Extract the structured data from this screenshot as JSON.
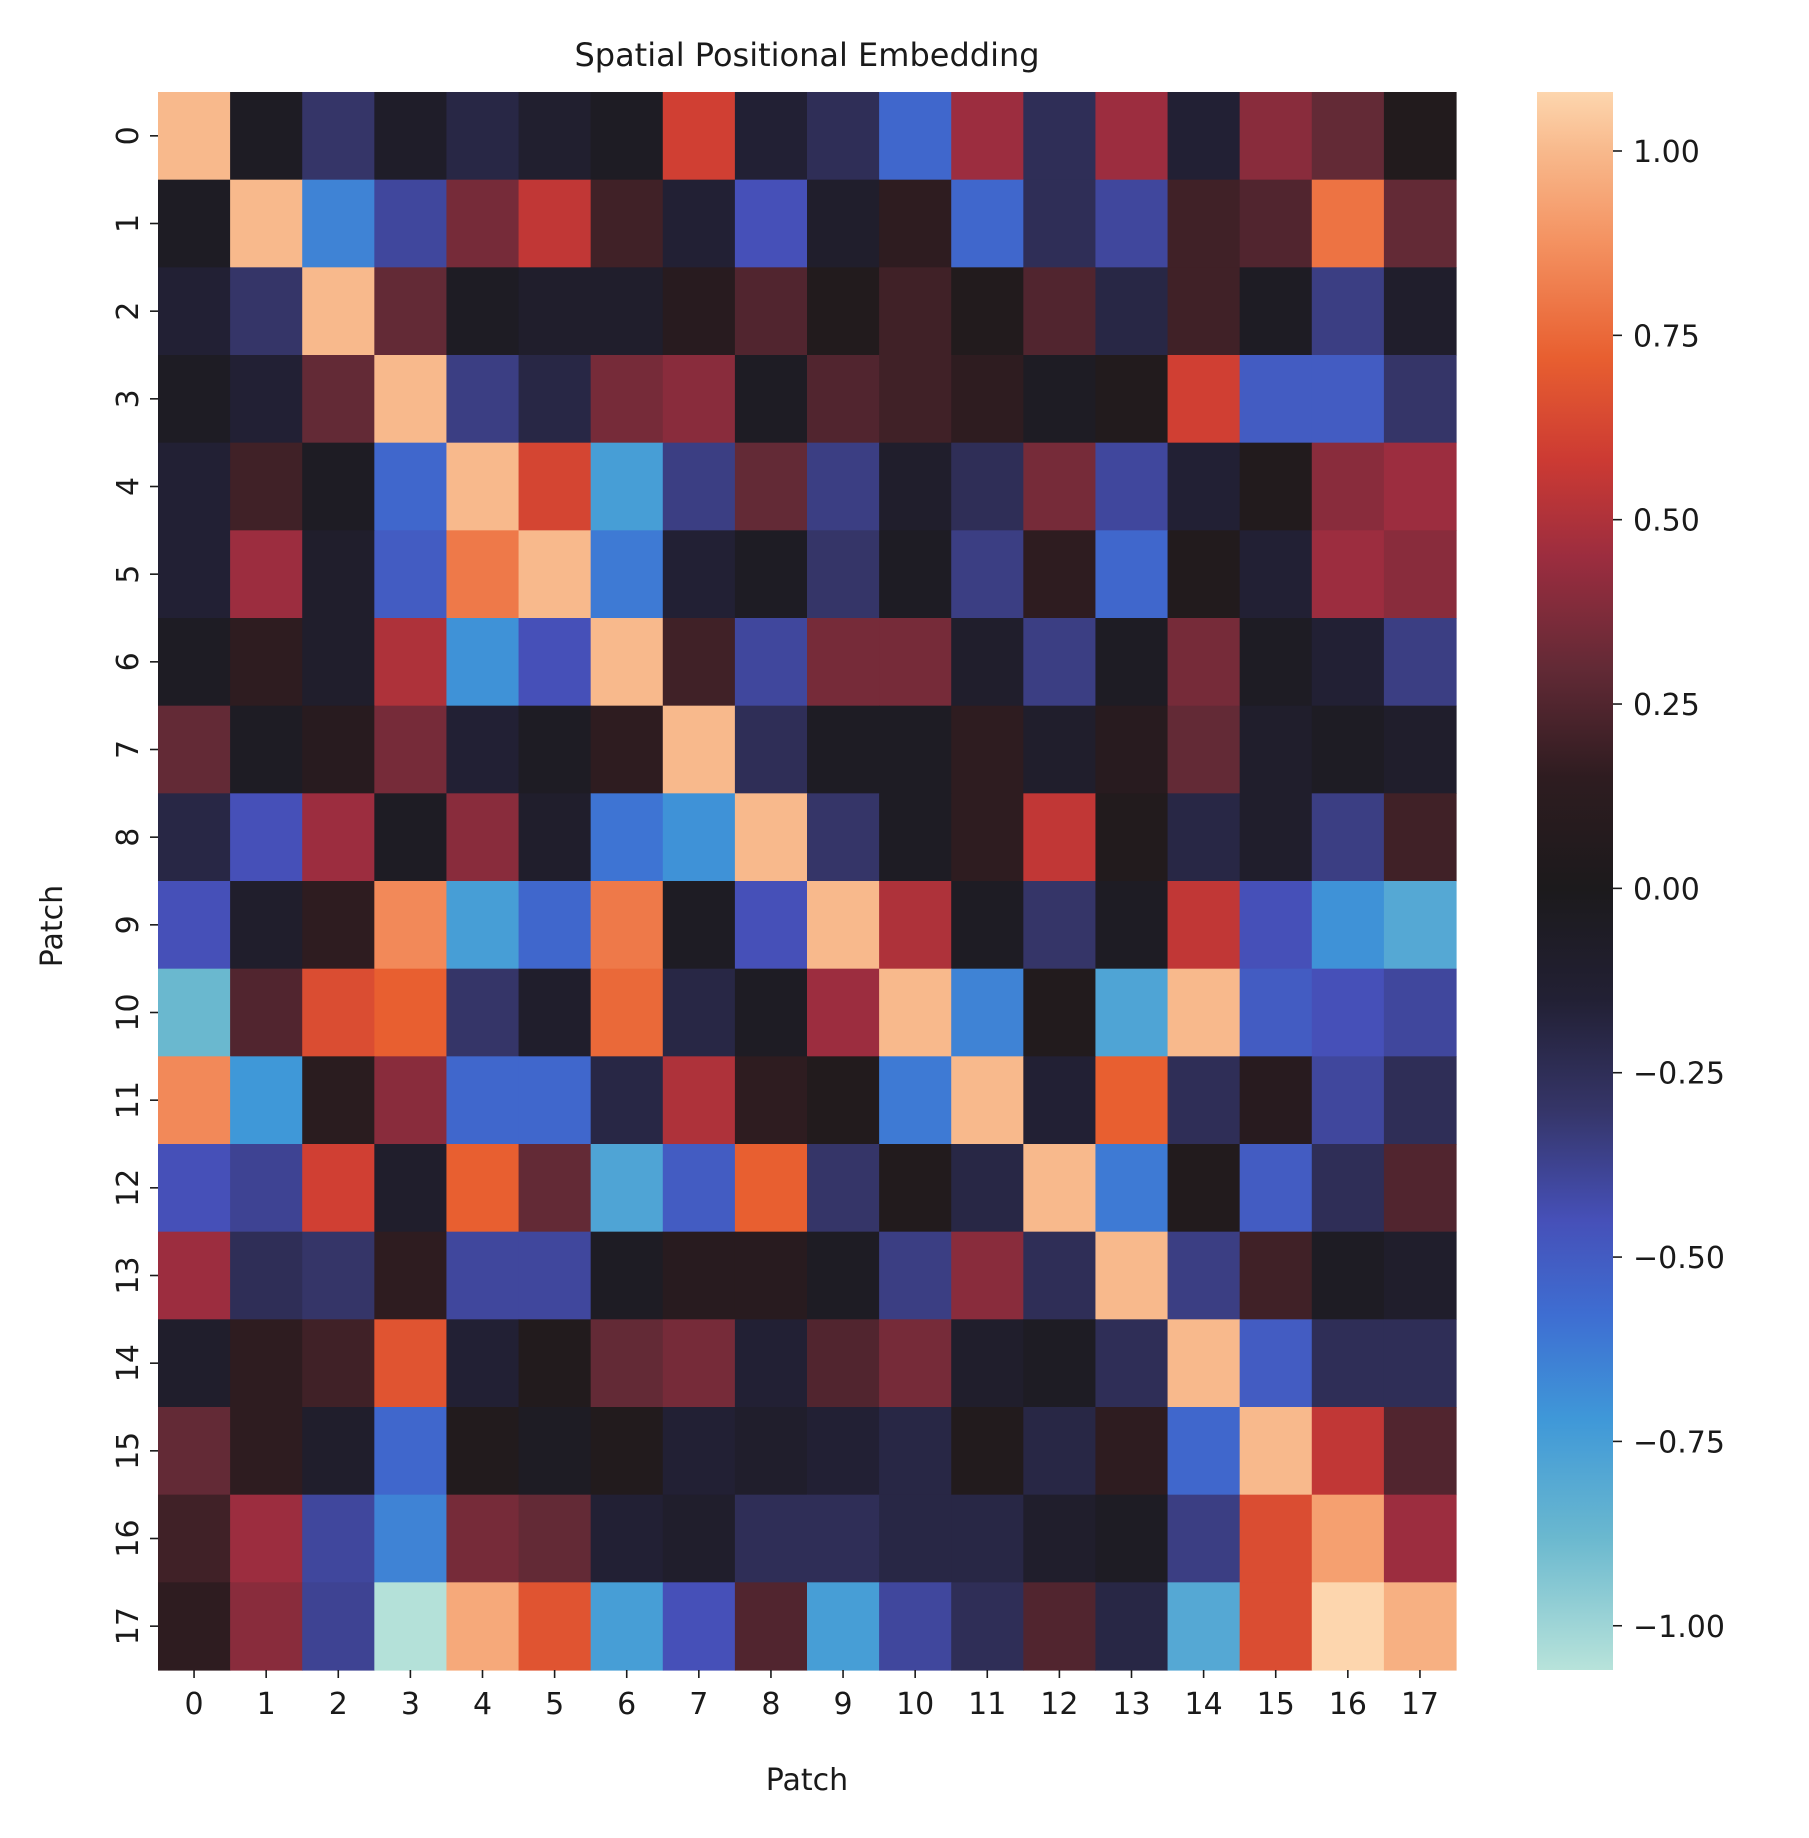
{
  "chart_data": {
    "type": "heatmap",
    "title": "Spatial Positional Embedding",
    "xlabel": "Patch",
    "ylabel": "Patch",
    "x_categories": [
      "0",
      "1",
      "2",
      "3",
      "4",
      "5",
      "6",
      "7",
      "8",
      "9",
      "10",
      "11",
      "12",
      "13",
      "14",
      "15",
      "16",
      "17"
    ],
    "y_categories": [
      "0",
      "1",
      "2",
      "3",
      "4",
      "5",
      "6",
      "7",
      "8",
      "9",
      "10",
      "11",
      "12",
      "13",
      "14",
      "15",
      "16",
      "17"
    ],
    "colorbar": {
      "vmin": -1.06,
      "vmax": 1.08,
      "ticks": [
        1.0,
        0.75,
        0.5,
        0.25,
        0.0,
        -0.25,
        -0.5,
        -0.75,
        -1.0
      ],
      "tick_labels": [
        "1.00",
        "0.75",
        "0.50",
        "0.25",
        "0.00",
        "−0.25",
        "−0.50",
        "−0.75",
        "−1.00"
      ]
    },
    "colormap": "icefire",
    "colormap_stops": [
      [
        -1.06,
        "#b8e3da"
      ],
      [
        -0.88,
        "#6ab8cf"
      ],
      [
        -0.72,
        "#3f98d8"
      ],
      [
        -0.58,
        "#3e6ed2"
      ],
      [
        -0.45,
        "#4650b8"
      ],
      [
        -0.3,
        "#353568"
      ],
      [
        -0.15,
        "#222034"
      ],
      [
        0.0,
        "#1c1a1c"
      ],
      [
        0.15,
        "#2e1c20"
      ],
      [
        0.3,
        "#632a36"
      ],
      [
        0.45,
        "#9c2d3f"
      ],
      [
        0.58,
        "#cc3a33"
      ],
      [
        0.72,
        "#e85f30"
      ],
      [
        0.88,
        "#f49362"
      ],
      [
        1.0,
        "#f8b98c"
      ],
      [
        1.08,
        "#fdd6ae"
      ]
    ],
    "values": [
      [
        1.0,
        -0.05,
        -0.3,
        -0.08,
        -0.2,
        -0.12,
        -0.05,
        0.6,
        -0.15,
        -0.25,
        -0.55,
        0.45,
        -0.25,
        0.45,
        -0.15,
        0.4,
        0.3,
        0.05
      ],
      [
        -0.05,
        1.0,
        -0.65,
        -0.4,
        0.35,
        0.55,
        0.2,
        -0.15,
        -0.45,
        -0.1,
        0.15,
        -0.55,
        -0.25,
        -0.4,
        0.2,
        0.25,
        0.78,
        0.3
      ],
      [
        -0.15,
        -0.3,
        1.0,
        0.3,
        -0.05,
        -0.1,
        -0.1,
        0.1,
        0.25,
        0.05,
        0.2,
        0.05,
        0.25,
        -0.2,
        0.2,
        -0.05,
        -0.35,
        -0.1
      ],
      [
        -0.05,
        -0.15,
        0.3,
        1.0,
        -0.35,
        -0.2,
        0.35,
        0.4,
        -0.05,
        0.25,
        0.2,
        0.15,
        -0.05,
        0.05,
        0.6,
        -0.5,
        -0.5,
        -0.3
      ],
      [
        -0.15,
        0.2,
        -0.05,
        -0.55,
        1.0,
        0.62,
        -0.75,
        -0.35,
        0.3,
        -0.35,
        -0.1,
        -0.25,
        0.35,
        -0.4,
        -0.15,
        0.05,
        0.4,
        0.45
      ],
      [
        -0.15,
        0.45,
        -0.1,
        -0.5,
        0.8,
        1.0,
        -0.62,
        -0.15,
        -0.05,
        -0.3,
        -0.05,
        -0.35,
        0.15,
        -0.55,
        0.05,
        -0.15,
        0.45,
        0.4
      ],
      [
        -0.05,
        0.15,
        -0.1,
        0.5,
        -0.7,
        -0.45,
        1.0,
        0.2,
        -0.4,
        0.35,
        0.35,
        -0.1,
        -0.35,
        -0.05,
        0.35,
        -0.05,
        -0.15,
        -0.35
      ],
      [
        0.3,
        -0.05,
        0.1,
        0.35,
        -0.15,
        -0.05,
        0.15,
        1.0,
        -0.25,
        -0.05,
        -0.05,
        0.15,
        -0.1,
        0.1,
        0.3,
        -0.1,
        -0.05,
        -0.1
      ],
      [
        -0.2,
        -0.45,
        0.45,
        -0.05,
        0.4,
        -0.1,
        -0.6,
        -0.7,
        1.0,
        -0.3,
        -0.05,
        0.15,
        0.55,
        0.05,
        -0.2,
        -0.1,
        -0.35,
        0.2
      ],
      [
        -0.45,
        -0.1,
        0.15,
        0.85,
        -0.75,
        -0.55,
        0.8,
        -0.05,
        -0.45,
        1.0,
        0.5,
        -0.05,
        -0.3,
        -0.05,
        0.55,
        -0.45,
        -0.7,
        -0.8
      ],
      [
        -0.88,
        0.25,
        0.65,
        0.72,
        -0.3,
        -0.1,
        0.75,
        -0.2,
        -0.05,
        0.45,
        1.0,
        -0.65,
        0.05,
        -0.78,
        1.0,
        -0.5,
        -0.45,
        -0.4
      ],
      [
        0.85,
        -0.72,
        0.12,
        0.4,
        -0.55,
        -0.55,
        -0.2,
        0.5,
        0.15,
        0.05,
        -0.62,
        1.0,
        -0.15,
        0.72,
        -0.25,
        0.1,
        -0.4,
        -0.25
      ],
      [
        -0.45,
        -0.38,
        0.6,
        -0.1,
        0.72,
        0.3,
        -0.78,
        -0.5,
        0.72,
        -0.3,
        0.05,
        -0.2,
        1.0,
        -0.62,
        0.05,
        -0.5,
        -0.25,
        0.25
      ],
      [
        0.45,
        -0.25,
        -0.3,
        0.15,
        -0.4,
        -0.4,
        -0.05,
        0.1,
        0.1,
        -0.05,
        -0.35,
        0.4,
        -0.25,
        1.0,
        -0.35,
        0.2,
        -0.05,
        -0.1
      ],
      [
        -0.1,
        0.15,
        0.2,
        0.68,
        -0.15,
        0.05,
        0.3,
        0.35,
        -0.15,
        0.25,
        0.35,
        -0.1,
        -0.05,
        -0.25,
        1.0,
        -0.5,
        -0.25,
        -0.25
      ],
      [
        0.3,
        0.15,
        -0.1,
        -0.55,
        0.05,
        -0.05,
        0.05,
        -0.15,
        -0.1,
        -0.15,
        -0.2,
        0.05,
        -0.2,
        0.15,
        -0.55,
        1.0,
        0.55,
        0.25
      ],
      [
        0.2,
        0.45,
        -0.4,
        -0.65,
        0.35,
        0.3,
        -0.15,
        -0.1,
        -0.25,
        -0.25,
        -0.2,
        -0.2,
        -0.1,
        -0.05,
        -0.35,
        0.65,
        0.92,
        0.45
      ],
      [
        0.15,
        0.4,
        -0.38,
        -1.05,
        0.95,
        0.68,
        -0.75,
        -0.45,
        0.25,
        -0.75,
        -0.4,
        -0.25,
        0.25,
        -0.2,
        -0.8,
        0.65,
        1.08,
        0.97
      ]
    ]
  }
}
